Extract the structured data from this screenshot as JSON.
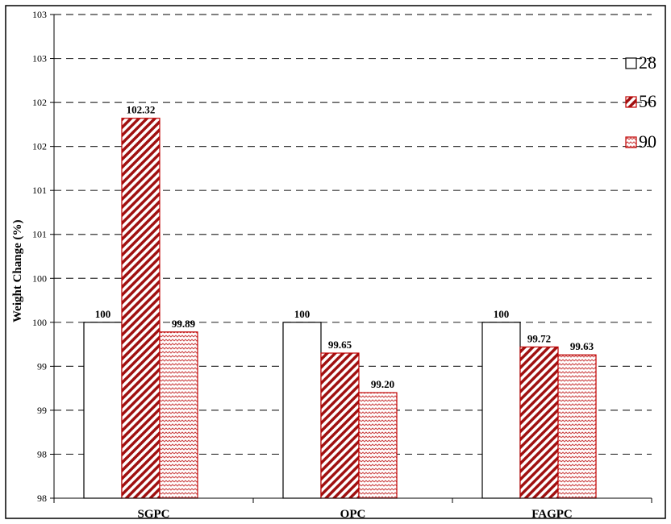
{
  "chart_data": {
    "type": "bar",
    "categories": [
      "SGPC",
      "OPC",
      "FAGPC"
    ],
    "series": [
      {
        "name": "28",
        "values": [
          100,
          100,
          100
        ],
        "labels": [
          "100",
          "100",
          "100"
        ],
        "fill": "white"
      },
      {
        "name": "56",
        "values": [
          102.32,
          99.65,
          99.72
        ],
        "labels": [
          "102.32",
          "99.65",
          "99.72"
        ],
        "fill": "diagonal-hatch"
      },
      {
        "name": "90",
        "values": [
          99.89,
          99.2,
          99.63
        ],
        "labels": [
          "99.89",
          "99.20",
          "99.63"
        ],
        "fill": "wave-pattern"
      }
    ],
    "ylabel": "Weight Change (%)",
    "xlabel": "",
    "ylim": [
      98,
      103
    ],
    "yticks": [
      {
        "value": 98,
        "label": "98"
      },
      {
        "value": 98.5,
        "label": "98"
      },
      {
        "value": 99,
        "label": "99"
      },
      {
        "value": 99.5,
        "label": "99"
      },
      {
        "value": 100,
        "label": "100"
      },
      {
        "value": 100.5,
        "label": "100"
      },
      {
        "value": 101,
        "label": "101"
      },
      {
        "value": 101.5,
        "label": "101"
      },
      {
        "value": 102,
        "label": "102"
      },
      {
        "value": 102.5,
        "label": "102"
      },
      {
        "value": 103,
        "label": "103"
      },
      {
        "value": 103.5,
        "label": "103"
      }
    ],
    "grid": "dashed-horizontal",
    "legend": "right",
    "colors": {
      "bar_stroke": "#c00000",
      "hatch": "#a01010",
      "base_stroke": "#000000"
    }
  }
}
